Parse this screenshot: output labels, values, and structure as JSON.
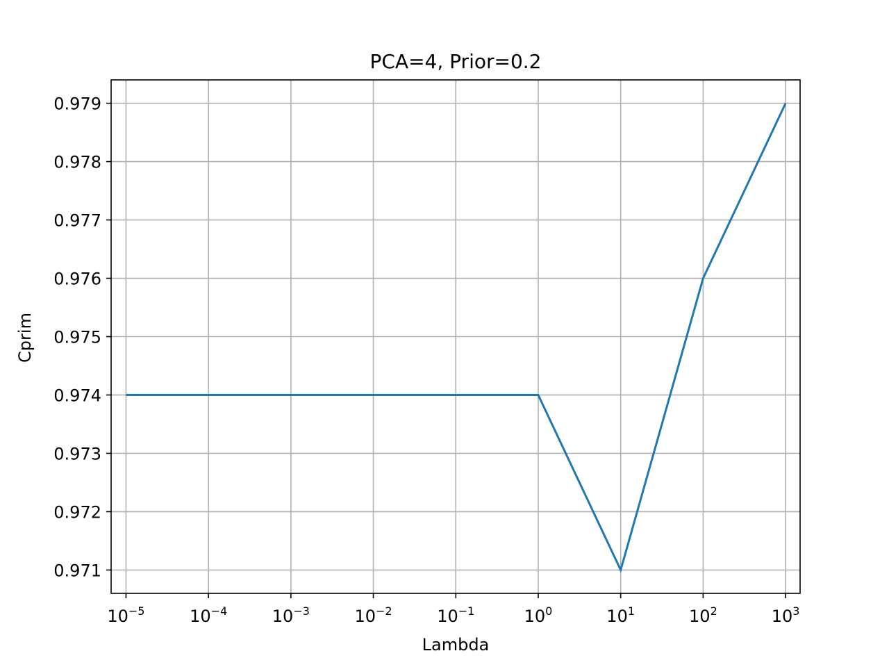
{
  "chart_data": {
    "type": "line",
    "title": "PCA=4, Prior=0.2",
    "xlabel": "Lambda",
    "ylabel": "Cprim",
    "xscale": "log",
    "grid": true,
    "x_ticks": [
      {
        "base": "10",
        "exp": "−5",
        "value": 1e-05
      },
      {
        "base": "10",
        "exp": "−4",
        "value": 0.0001
      },
      {
        "base": "10",
        "exp": "−3",
        "value": 0.001
      },
      {
        "base": "10",
        "exp": "−2",
        "value": 0.01
      },
      {
        "base": "10",
        "exp": "−1",
        "value": 0.1
      },
      {
        "base": "10",
        "exp": "0",
        "value": 1
      },
      {
        "base": "10",
        "exp": "1",
        "value": 10
      },
      {
        "base": "10",
        "exp": "2",
        "value": 100
      },
      {
        "base": "10",
        "exp": "3",
        "value": 1000
      }
    ],
    "y_ticks": [
      "0.971",
      "0.972",
      "0.973",
      "0.974",
      "0.975",
      "0.976",
      "0.977",
      "0.978",
      "0.979"
    ],
    "xlim": [
      6.6e-06,
      1500
    ],
    "ylim": [
      0.9706,
      0.9794
    ],
    "series": [
      {
        "color": "#1f77b4",
        "x": [
          1e-05,
          0.0001,
          0.001,
          0.01,
          0.1,
          1,
          10,
          100,
          1000
        ],
        "y": [
          0.974,
          0.974,
          0.974,
          0.974,
          0.974,
          0.974,
          0.971,
          0.976,
          0.979
        ]
      }
    ]
  }
}
